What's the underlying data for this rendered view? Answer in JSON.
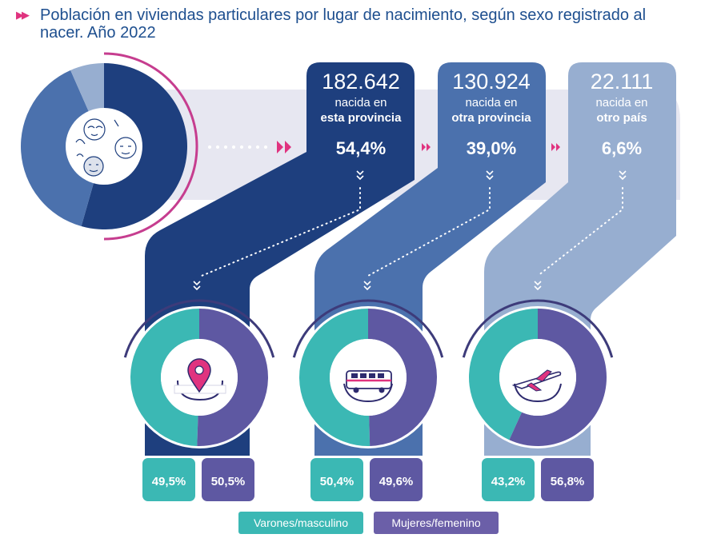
{
  "title": "Población en viviendas particulares por lugar de nacimiento, según sexo registrado al nacer. Año 2022",
  "icons": {
    "title": "double-chevron-right-icon",
    "center": "people-faces-icon",
    "group_1": "location-pin-icon",
    "group_2": "bus-icon",
    "group_3": "airplane-icon"
  },
  "colors": {
    "dark_blue": "#1e3f7e",
    "mid_blue": "#4b71ad",
    "light_blue": "#97aed0",
    "teal": "#3bb8b4",
    "purple": "#5e58a2",
    "magenta": "#e0337f"
  },
  "legend": {
    "male": "Varones/masculino",
    "female": "Mujeres/femenino"
  },
  "chart_data": [
    {
      "type": "pie",
      "title": "",
      "categories": [
        "nacida en esta provincia",
        "nacida en otra provincia",
        "nacida en otro país"
      ],
      "values": [
        54.4,
        39.0,
        6.6
      ]
    },
    {
      "type": "pie",
      "title": "nacida en esta provincia",
      "categories": [
        "Varones/masculino",
        "Mujeres/femenino"
      ],
      "values": [
        49.5,
        50.5
      ]
    },
    {
      "type": "pie",
      "title": "nacida en otra provincia",
      "categories": [
        "Varones/masculino",
        "Mujeres/femenino"
      ],
      "values": [
        50.4,
        49.6
      ]
    },
    {
      "type": "pie",
      "title": "nacida en otro país",
      "categories": [
        "Varones/masculino",
        "Mujeres/femenino"
      ],
      "values": [
        43.2,
        56.8
      ]
    }
  ],
  "groups": [
    {
      "count": "182.642",
      "line1": "nacida en",
      "line2": "esta provincia",
      "percent": "54,4%",
      "male_pct": "49,5%",
      "female_pct": "50,5%"
    },
    {
      "count": "130.924",
      "line1": "nacida en",
      "line2": "otra provincia",
      "percent": "39,0%",
      "male_pct": "50,4%",
      "female_pct": "49,6%"
    },
    {
      "count": "22.111",
      "line1": "nacida en",
      "line2": "otro país",
      "percent": "6,6%",
      "male_pct": "43,2%",
      "female_pct": "56,8%"
    }
  ]
}
